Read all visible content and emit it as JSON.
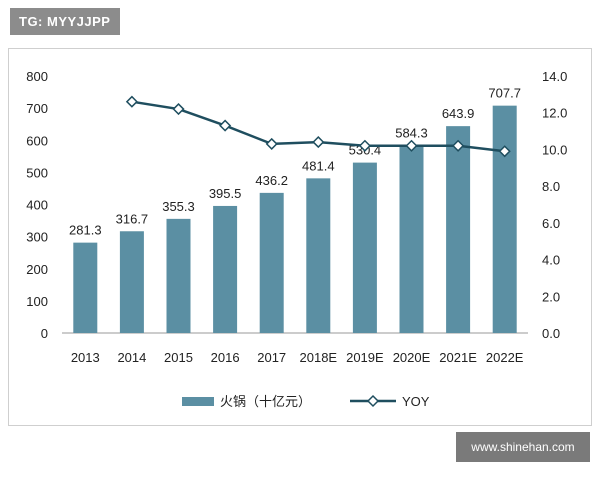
{
  "watermark_top": "TG: MYYJJPP",
  "watermark_bottom": "www.shinehan.com",
  "chart_data": {
    "type": "bar",
    "categories": [
      "2013",
      "2014",
      "2015",
      "2016",
      "2017",
      "2018E",
      "2019E",
      "2020E",
      "2021E",
      "2022E"
    ],
    "series": [
      {
        "name": "火锅（十亿元）",
        "type": "bar",
        "axis": "left",
        "values": [
          281.3,
          316.7,
          355.3,
          395.5,
          436.2,
          481.4,
          530.4,
          584.3,
          643.9,
          707.7
        ],
        "labels": [
          "281.3",
          "316.7",
          "355.3",
          "395.5",
          "436.2",
          "481.4",
          "530.4",
          "584.3",
          "643.9",
          "707.7"
        ],
        "color": "#5b8fa3"
      },
      {
        "name": "YOY",
        "type": "line",
        "axis": "right",
        "values": [
          null,
          12.6,
          12.2,
          11.3,
          10.3,
          10.4,
          10.2,
          10.2,
          10.2,
          9.9
        ],
        "color": "#1f4e5f"
      }
    ],
    "left_axis": {
      "ylim": [
        0,
        800
      ],
      "ticks": [
        "800",
        "700",
        "600",
        "500",
        "400",
        "300",
        "200",
        "100",
        "0"
      ]
    },
    "right_axis": {
      "ylim": [
        0,
        14
      ],
      "ticks": [
        "14.0",
        "12.0",
        "10.0",
        "8.0",
        "6.0",
        "4.0",
        "2.0",
        "0.0"
      ]
    },
    "grid": false,
    "legend_position": "bottom"
  }
}
